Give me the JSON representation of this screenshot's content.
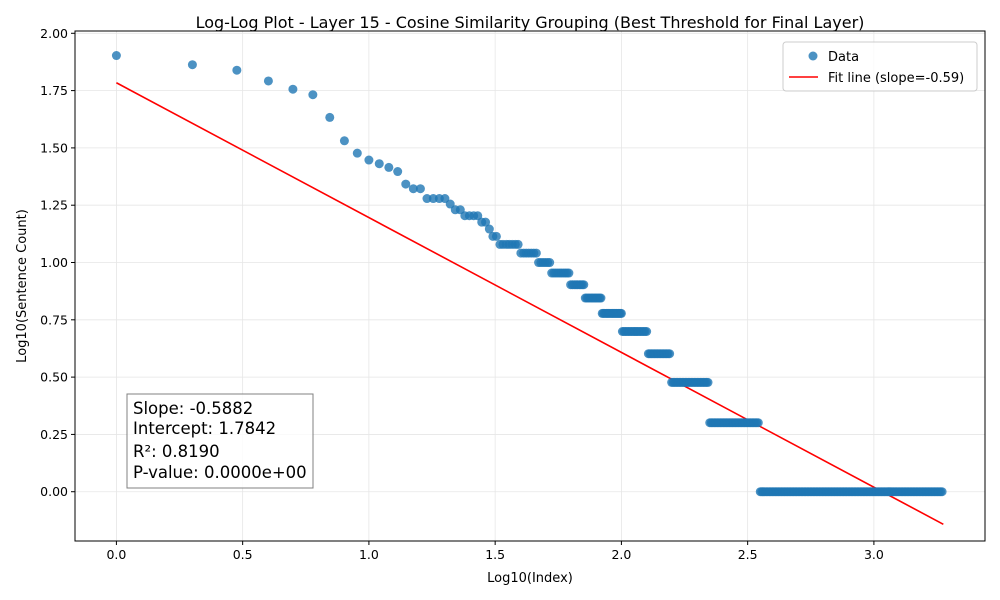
{
  "chart_data": {
    "type": "scatter",
    "title": "Log-Log Plot - Layer 15 - Cosine Similarity Grouping (Best Threshold for Final Layer)",
    "xlabel": "Log10(Index)",
    "ylabel": "Log10(Sentence Count)",
    "xlim": [
      -0.164,
      3.44
    ],
    "ylim": [
      -0.215,
      2.01
    ],
    "xticks": [
      0.0,
      0.5,
      1.0,
      1.5,
      2.0,
      2.5,
      3.0
    ],
    "xtick_labels": [
      "0.0",
      "0.5",
      "1.0",
      "1.5",
      "2.0",
      "2.5",
      "3.0"
    ],
    "yticks": [
      0.0,
      0.25,
      0.5,
      0.75,
      1.0,
      1.25,
      1.5,
      1.75,
      2.0
    ],
    "ytick_labels": [
      "0.00",
      "0.25",
      "0.50",
      "0.75",
      "1.00",
      "1.25",
      "1.50",
      "1.75",
      "2.00"
    ],
    "grid": true,
    "legend_position": "top-right",
    "colors": {
      "data": "#1f77b4",
      "fit": "#ff0000",
      "grid": "#e6e6e6"
    },
    "series": [
      {
        "name": "Data",
        "kind": "scatter",
        "points": [
          [
            0.0,
            1.903
          ],
          [
            0.301,
            1.863
          ],
          [
            0.477,
            1.839
          ],
          [
            0.602,
            1.792
          ],
          [
            0.699,
            1.756
          ],
          [
            0.778,
            1.732
          ],
          [
            0.845,
            1.633
          ],
          [
            0.903,
            1.531
          ],
          [
            0.954,
            1.477
          ],
          [
            1.0,
            1.447
          ],
          [
            1.041,
            1.431
          ],
          [
            1.079,
            1.415
          ],
          [
            1.114,
            1.397
          ],
          [
            1.146,
            1.342
          ],
          [
            1.176,
            1.322
          ],
          [
            1.204,
            1.322
          ],
          [
            1.23,
            1.279
          ],
          [
            1.255,
            1.279
          ],
          [
            1.279,
            1.279
          ],
          [
            1.301,
            1.279
          ],
          [
            1.322,
            1.255
          ],
          [
            1.342,
            1.23
          ],
          [
            1.362,
            1.23
          ],
          [
            1.38,
            1.204
          ],
          [
            1.398,
            1.204
          ],
          [
            1.415,
            1.204
          ],
          [
            1.431,
            1.204
          ],
          [
            1.447,
            1.176
          ],
          [
            1.462,
            1.176
          ],
          [
            1.477,
            1.146
          ],
          [
            1.491,
            1.114
          ],
          [
            1.505,
            1.114
          ],
          [
            1.519,
            1.079
          ],
          [
            1.531,
            1.079
          ],
          [
            1.544,
            1.079
          ],
          [
            1.556,
            1.079
          ],
          [
            1.568,
            1.079
          ],
          [
            1.58,
            1.079
          ],
          [
            1.591,
            1.079
          ],
          [
            1.602,
            1.041
          ],
          [
            1.613,
            1.041
          ],
          [
            1.623,
            1.041
          ],
          [
            1.633,
            1.041
          ],
          [
            1.643,
            1.041
          ],
          [
            1.653,
            1.041
          ],
          [
            1.663,
            1.041
          ],
          [
            1.672,
            1.0
          ],
          [
            1.681,
            1.0
          ],
          [
            1.69,
            1.0
          ],
          [
            1.699,
            1.0
          ],
          [
            1.708,
            1.0
          ],
          [
            1.716,
            1.0
          ],
          [
            1.724,
            0.954
          ],
          [
            1.732,
            0.954
          ],
          [
            1.74,
            0.954
          ],
          [
            1.748,
            0.954
          ],
          [
            1.756,
            0.954
          ],
          [
            1.763,
            0.954
          ],
          [
            1.771,
            0.954
          ],
          [
            1.778,
            0.954
          ],
          [
            1.785,
            0.954
          ],
          [
            1.792,
            0.954
          ],
          [
            1.799,
            0.903
          ],
          [
            1.806,
            0.903
          ],
          [
            1.813,
            0.903
          ],
          [
            1.82,
            0.903
          ],
          [
            1.826,
            0.903
          ],
          [
            1.833,
            0.903
          ],
          [
            1.839,
            0.903
          ],
          [
            1.845,
            0.903
          ],
          [
            1.851,
            0.903
          ],
          [
            1.857,
            0.845
          ],
          [
            1.863,
            0.845
          ],
          [
            1.869,
            0.845
          ],
          [
            1.875,
            0.845
          ],
          [
            1.881,
            0.845
          ],
          [
            1.886,
            0.845
          ],
          [
            1.892,
            0.845
          ],
          [
            1.897,
            0.845
          ],
          [
            1.903,
            0.845
          ],
          [
            1.908,
            0.845
          ],
          [
            1.914,
            0.845
          ],
          [
            1.919,
            0.845
          ],
          [
            1.924,
            0.778
          ],
          [
            1.929,
            0.778
          ],
          [
            1.934,
            0.778
          ],
          [
            1.94,
            0.778
          ],
          [
            1.944,
            0.778
          ],
          [
            1.949,
            0.778
          ],
          [
            1.954,
            0.778
          ],
          [
            1.959,
            0.778
          ],
          [
            1.964,
            0.778
          ],
          [
            1.968,
            0.778
          ],
          [
            1.973,
            0.778
          ],
          [
            1.978,
            0.778
          ],
          [
            1.982,
            0.778
          ],
          [
            1.987,
            0.778
          ],
          [
            1.991,
            0.778
          ],
          [
            1.996,
            0.778
          ],
          [
            2.0,
            0.778
          ]
        ],
        "plateaus": [
          {
            "y": 0.699,
            "x_range": [
              2.004,
              2.104
            ],
            "step": 0.006
          },
          {
            "y": 0.602,
            "x_range": [
              2.107,
              2.196
            ],
            "step": 0.006
          },
          {
            "y": 0.477,
            "x_range": [
              2.199,
              2.347
            ],
            "step": 0.006
          },
          {
            "y": 0.301,
            "x_range": [
              2.35,
              2.547
            ],
            "step": 0.006
          },
          {
            "y": 0.0,
            "x_range": [
              2.55,
              3.275
            ],
            "step": 0.006
          }
        ]
      },
      {
        "name": "Fit line (slope=-0.59)",
        "kind": "line",
        "x_range": [
          0.0,
          3.275
        ],
        "slope": -0.5882,
        "intercept": 1.7842
      }
    ],
    "legend": [
      {
        "label": "Data",
        "marker": "circle"
      },
      {
        "label": "Fit line (slope=-0.59)",
        "marker": "line"
      }
    ],
    "annotation": {
      "position": "bottom-left",
      "lines": [
        "Slope: -0.5882",
        "Intercept: 1.7842",
        "R²: 0.8190",
        "P-value: 0.0000e+00"
      ]
    }
  }
}
